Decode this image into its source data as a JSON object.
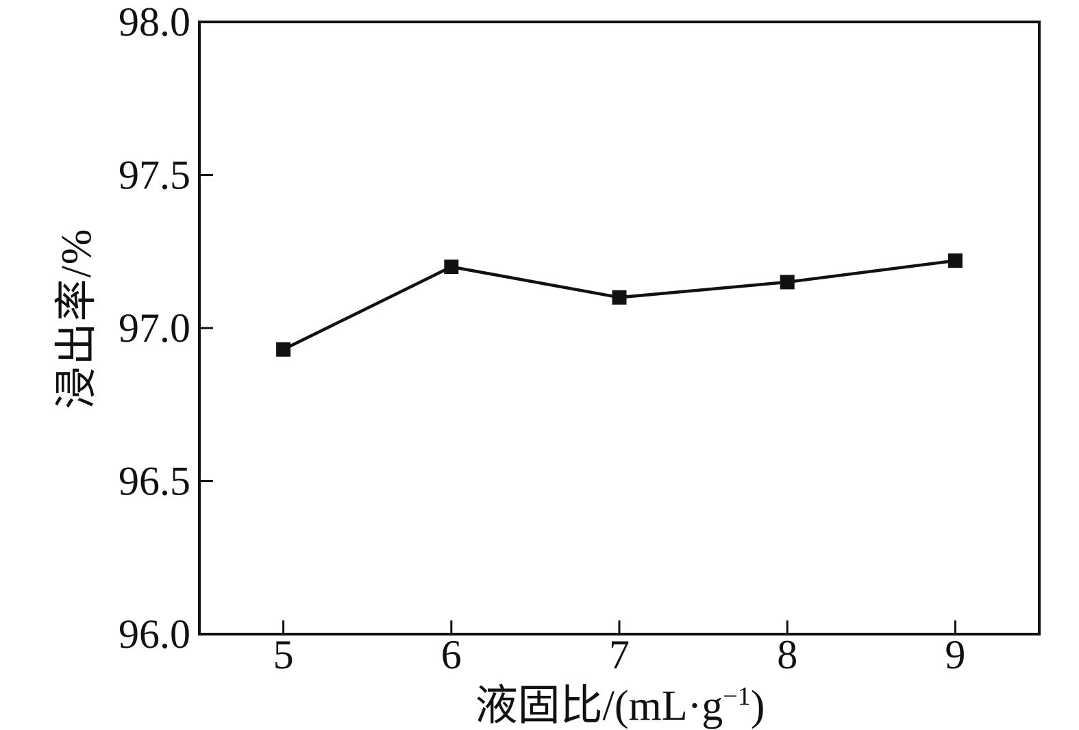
{
  "figure": {
    "background": "#ffffff"
  },
  "chart_data": {
    "type": "line",
    "title": "",
    "xlabel": "液固比/(mL·g⁻¹)",
    "xlabel_parts": {
      "prefix": "液固比/(mL·g",
      "superscript": "−1",
      "suffix": ")"
    },
    "ylabel": "浸出率/%",
    "x": [
      5,
      6,
      7,
      8,
      9
    ],
    "series": [
      {
        "name": "浸出率",
        "values": [
          96.93,
          97.2,
          97.1,
          97.15,
          97.22
        ]
      }
    ],
    "xlim": [
      4.5,
      9.5
    ],
    "ylim": [
      96.0,
      98.0
    ],
    "x_ticks": [
      5,
      6,
      7,
      8,
      9
    ],
    "x_tick_labels": [
      "5",
      "6",
      "7",
      "8",
      "9"
    ],
    "y_ticks": [
      96.0,
      96.5,
      97.0,
      97.5,
      98.0
    ],
    "y_tick_labels": [
      "96.0",
      "96.5",
      "97.0",
      "97.5",
      "98.0"
    ],
    "grid": false,
    "legend": "none",
    "marker": "square",
    "marker_size": 21,
    "line_color": "#111111",
    "axis_color": "#111111",
    "tick_direction": "in"
  }
}
